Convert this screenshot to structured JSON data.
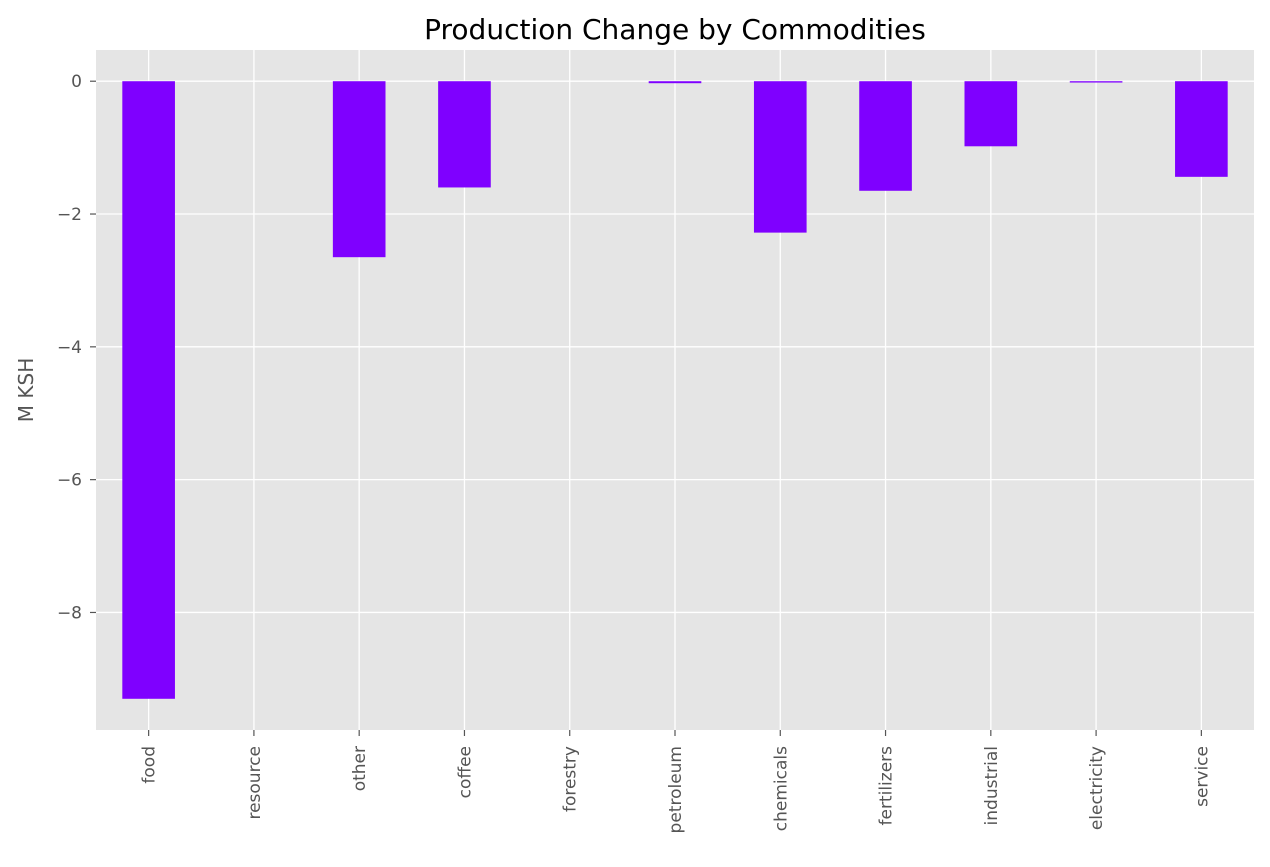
{
  "chart_data": {
    "type": "bar",
    "title": "Production Change by Commodities",
    "xlabel": "",
    "ylabel": "M KSH",
    "categories": [
      "food",
      "resource",
      "other",
      "coffee",
      "forestry",
      "petroleum",
      "chemicals",
      "fertilizers",
      "industrial",
      "electricity",
      "service"
    ],
    "values": [
      -9.3,
      0.0,
      -2.65,
      -1.6,
      0.0,
      -0.03,
      -2.28,
      -1.65,
      -0.98,
      -0.02,
      -1.44
    ],
    "ylim": [
      -9.77,
      0.47
    ],
    "yticks": [
      0,
      -2,
      -4,
      -6,
      -8
    ],
    "ytick_labels": [
      "0",
      "−2",
      "−4",
      "−6",
      "−8"
    ],
    "bar_color": "#7f00ff",
    "background_color": "#e5e5e5",
    "grid": true,
    "grid_color": "#ffffff",
    "style": "ggplot"
  }
}
